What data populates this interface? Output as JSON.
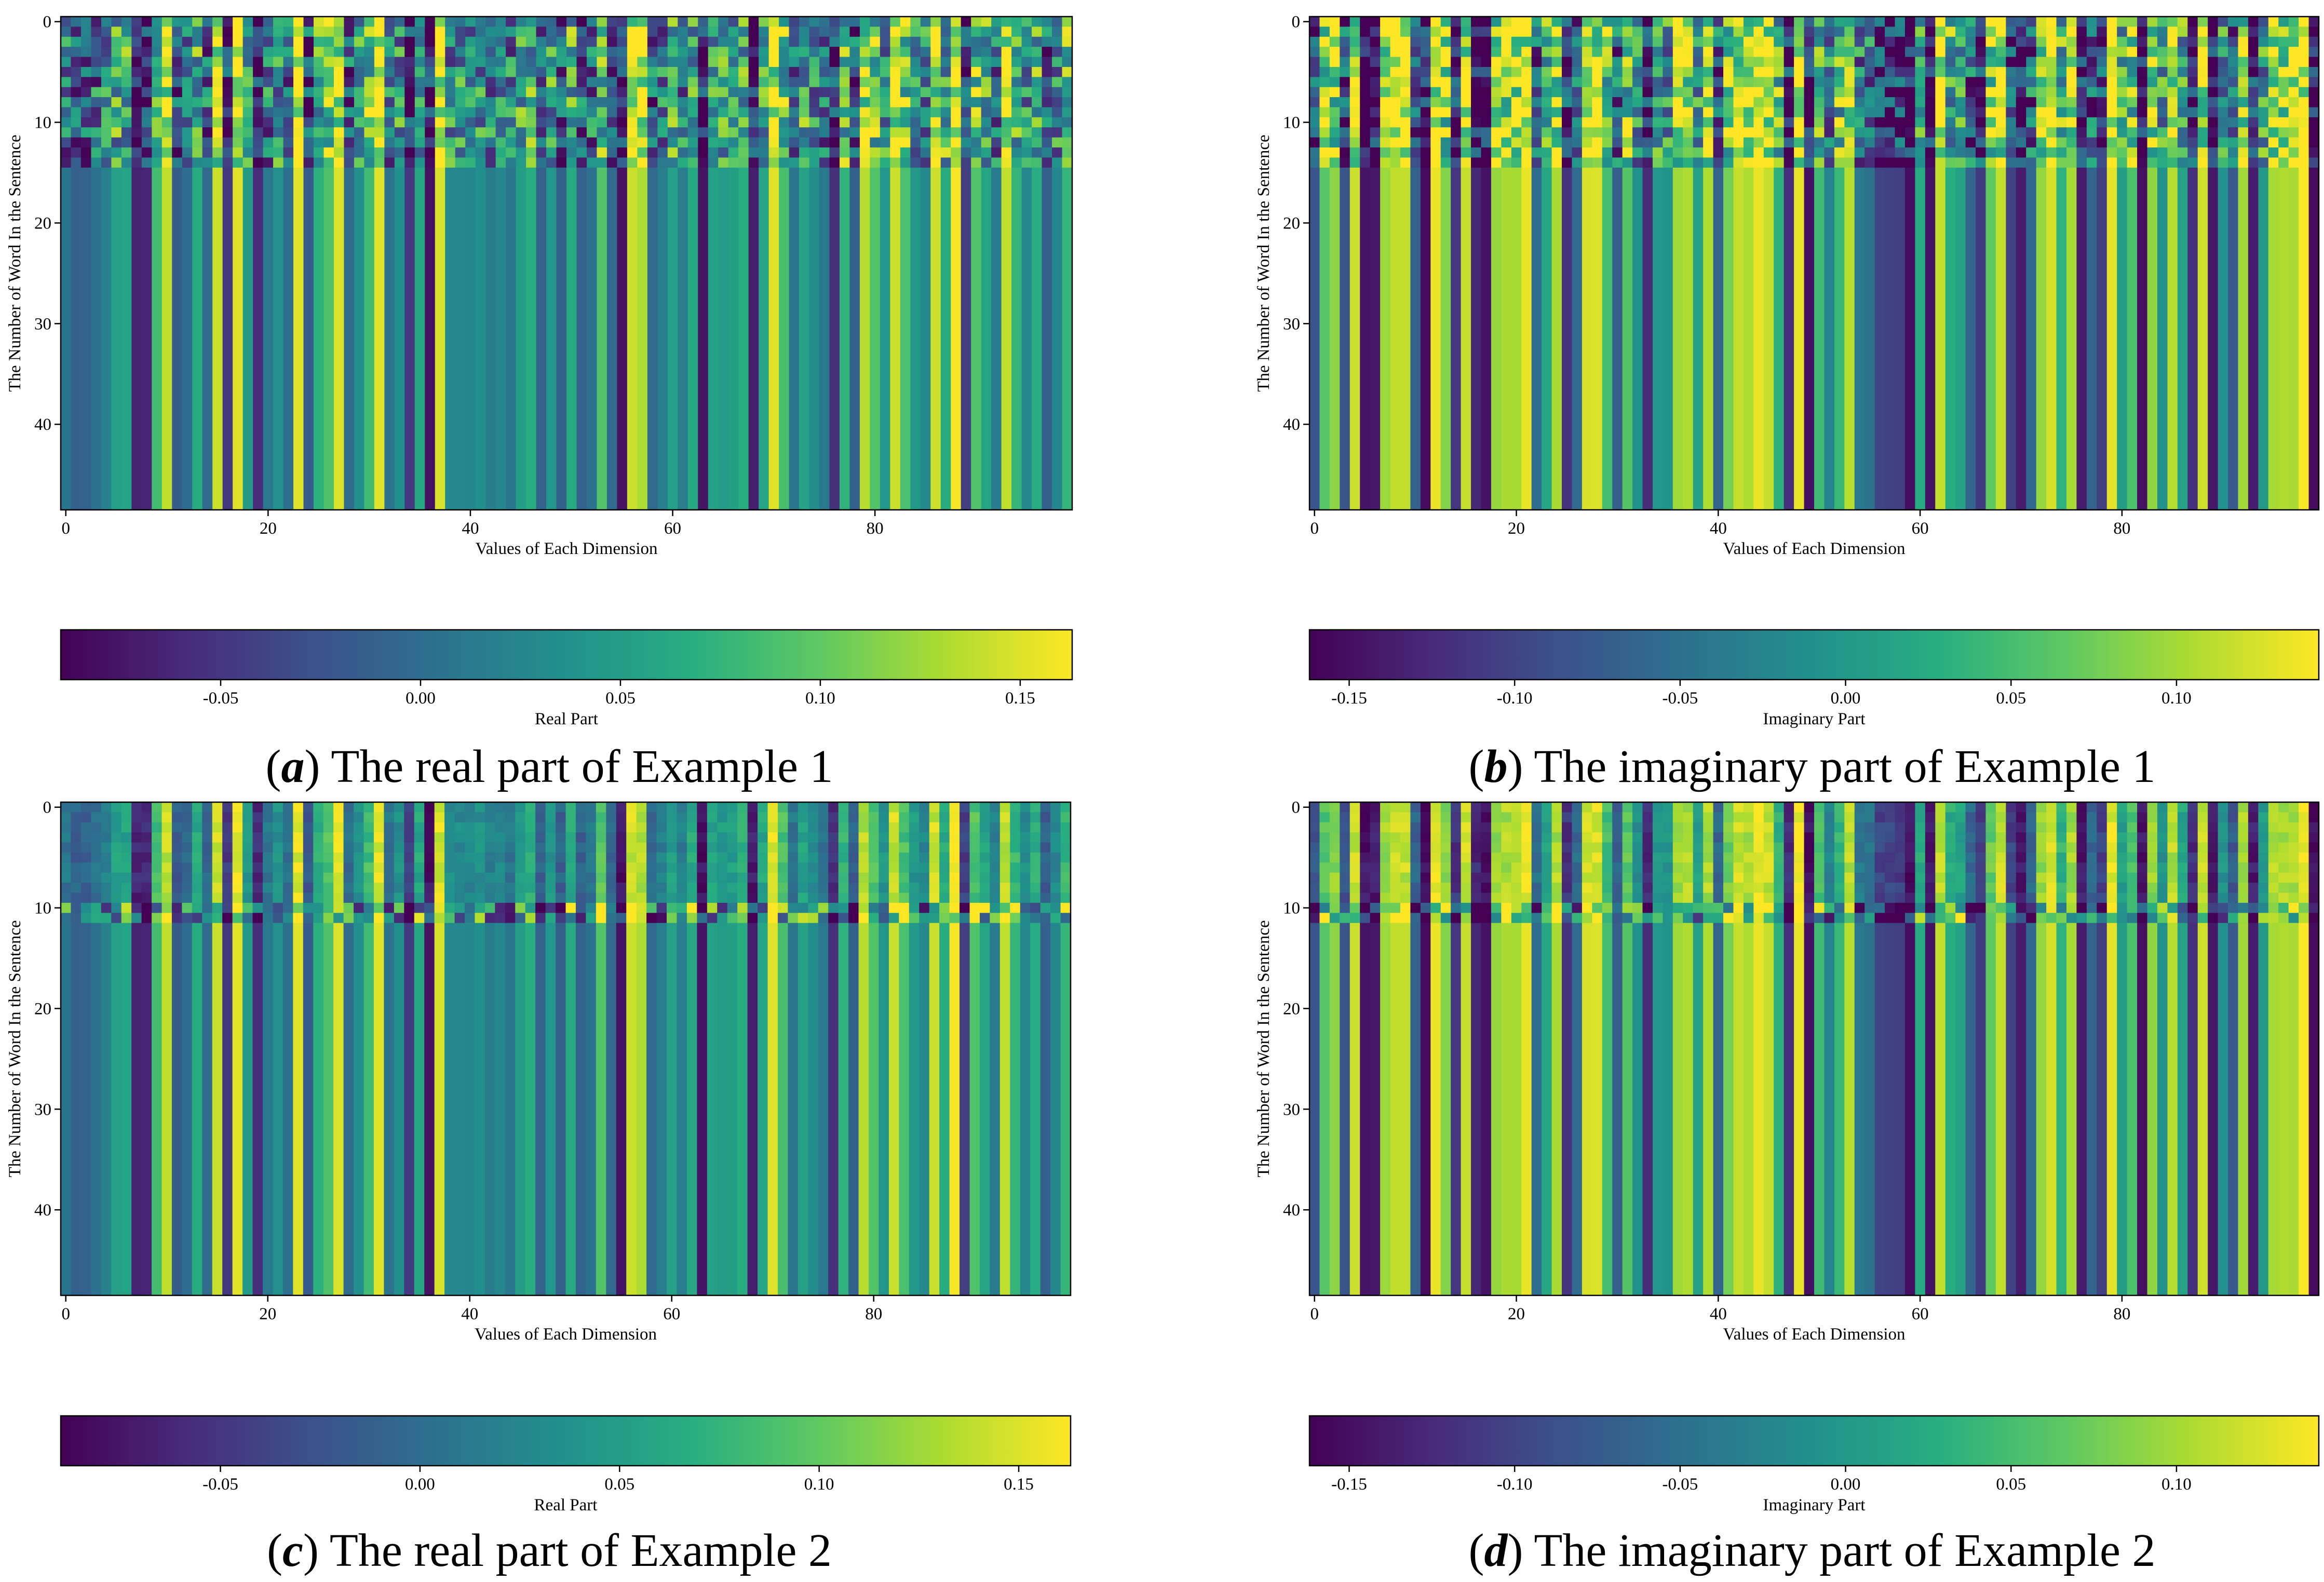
{
  "chart_data": [
    {
      "type": "heatmap",
      "panel": "a",
      "caption_letter": "a",
      "caption_text": "The real part of Example 1",
      "xlabel": "Values of Each Dimension",
      "ylabel": "The Number of Word In the Sentence",
      "x_ticks": [
        "0",
        "20",
        "40",
        "60",
        "80"
      ],
      "y_ticks": [
        "0",
        "10",
        "20",
        "30",
        "40"
      ],
      "n_cols": 100,
      "n_rows": 49,
      "active_rows": 15,
      "colorbar_label": "Real Part",
      "colorbar_ticks": [
        "-0.05",
        "0.00",
        "0.05",
        "0.10",
        "0.15"
      ],
      "vmin": -0.09,
      "vmax": 0.163,
      "colormap": [
        "#440154",
        "#472c7a",
        "#3b528b",
        "#2c728e",
        "#21918c",
        "#28ae80",
        "#5ec962",
        "#addc30",
        "#fde725"
      ]
    },
    {
      "type": "heatmap",
      "panel": "b",
      "caption_letter": "b",
      "caption_text": "The imaginary part of Example 1",
      "xlabel": "Values of Each Dimension",
      "ylabel": "The Number of Word In the Sentence",
      "x_ticks": [
        "0",
        "20",
        "40",
        "60",
        "80"
      ],
      "y_ticks": [
        "0",
        "10",
        "20",
        "30",
        "40"
      ],
      "n_cols": 100,
      "n_rows": 49,
      "active_rows": 15,
      "colorbar_label": "Imaginary Part",
      "colorbar_ticks": [
        "-0.15",
        "-0.10",
        "-0.05",
        "0.00",
        "0.05",
        "0.10"
      ],
      "vmin": -0.162,
      "vmax": 0.143,
      "colormap": [
        "#440154",
        "#472c7a",
        "#3b528b",
        "#2c728e",
        "#21918c",
        "#28ae80",
        "#5ec962",
        "#addc30",
        "#fde725"
      ]
    },
    {
      "type": "heatmap",
      "panel": "c",
      "caption_letter": "c",
      "caption_text": "The real part of Example 2",
      "xlabel": "Values of Each Dimension",
      "ylabel": "The Number of Word In the Sentence",
      "x_ticks": [
        "0",
        "20",
        "40",
        "60",
        "80"
      ],
      "y_ticks": [
        "0",
        "10",
        "20",
        "30",
        "40"
      ],
      "n_cols": 100,
      "n_rows": 49,
      "active_rows": 12,
      "colorbar_label": "Real Part",
      "colorbar_ticks": [
        "-0.05",
        "0.00",
        "0.05",
        "0.10",
        "0.15"
      ],
      "vmin": -0.09,
      "vmax": 0.163,
      "colormap": [
        "#440154",
        "#472c7a",
        "#3b528b",
        "#2c728e",
        "#21918c",
        "#28ae80",
        "#5ec962",
        "#addc30",
        "#fde725"
      ]
    },
    {
      "type": "heatmap",
      "panel": "d",
      "caption_letter": "d",
      "caption_text": "The imaginary part of Example 2",
      "xlabel": "Values of Each Dimension",
      "ylabel": "The Number of Word In the Sentence",
      "x_ticks": [
        "0",
        "20",
        "40",
        "60",
        "80"
      ],
      "y_ticks": [
        "0",
        "10",
        "20",
        "30",
        "40"
      ],
      "n_cols": 100,
      "n_rows": 49,
      "active_rows": 12,
      "colorbar_label": "Imaginary Part",
      "colorbar_ticks": [
        "-0.15",
        "-0.10",
        "-0.05",
        "0.00",
        "0.05",
        "0.10"
      ],
      "vmin": -0.162,
      "vmax": 0.143,
      "colormap": [
        "#440154",
        "#472c7a",
        "#3b528b",
        "#2c728e",
        "#21918c",
        "#28ae80",
        "#5ec962",
        "#addc30",
        "#fde725"
      ]
    }
  ]
}
